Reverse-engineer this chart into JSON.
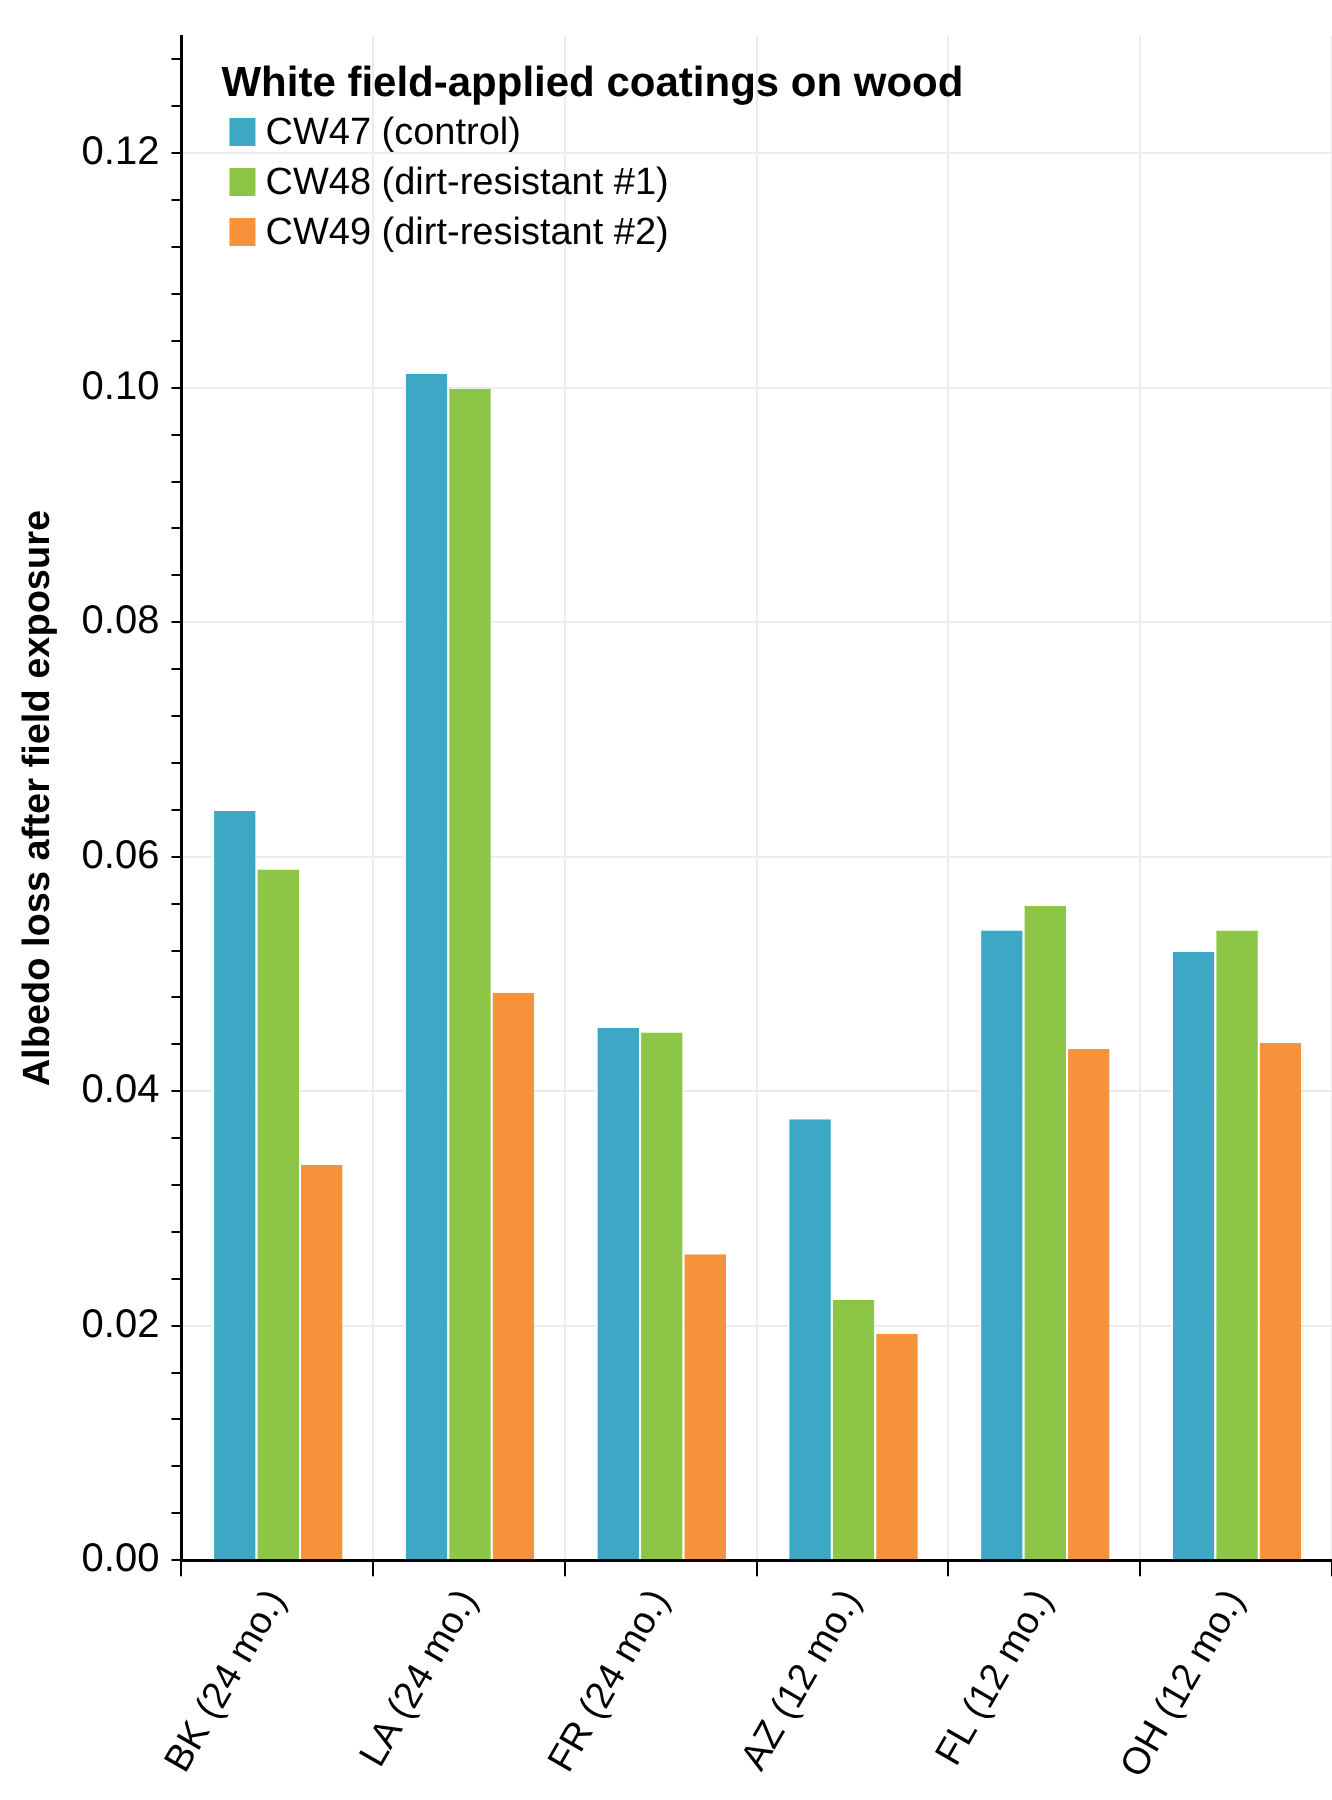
{
  "chart_data": {
    "type": "bar",
    "ylabel": "Albedo loss after field exposure",
    "legend_title": "White field-applied coatings on wood",
    "categories": [
      "BK (24 mo.)",
      "LA (24 mo.)",
      "FR (24 mo.)",
      "AZ (12 mo.)",
      "FL (12 mo.)",
      "OH (12 mo.)"
    ],
    "series": [
      {
        "name": "CW47 (control)",
        "color": "#3da8c6",
        "values": [
          0.0639,
          0.1012,
          0.0454,
          0.0376,
          0.0537,
          0.0519
        ]
      },
      {
        "name": "CW48 (dirt-resistant #1)",
        "color": "#8dc646",
        "values": [
          0.0589,
          0.0999,
          0.045,
          0.0222,
          0.0558,
          0.0537
        ]
      },
      {
        "name": "CW49 (dirt-resistant #2)",
        "color": "#f5923a",
        "values": [
          0.0337,
          0.0484,
          0.0261,
          0.0193,
          0.0436,
          0.0441
        ]
      }
    ],
    "ylim": [
      0,
      0.13
    ],
    "yticks": [
      {
        "value": 0,
        "label": "0.00"
      },
      {
        "value": 0.004,
        "label": null
      },
      {
        "value": 0.008,
        "label": null
      },
      {
        "value": 0.012,
        "label": null
      },
      {
        "value": 0.016,
        "label": null
      },
      {
        "value": 0.02,
        "label": "0.02"
      },
      {
        "value": 0.024,
        "label": null
      },
      {
        "value": 0.028,
        "label": null
      },
      {
        "value": 0.032,
        "label": null
      },
      {
        "value": 0.036,
        "label": null
      },
      {
        "value": 0.04,
        "label": "0.04"
      },
      {
        "value": 0.044,
        "label": null
      },
      {
        "value": 0.048,
        "label": null
      },
      {
        "value": 0.052,
        "label": null
      },
      {
        "value": 0.056,
        "label": null
      },
      {
        "value": 0.06,
        "label": "0.06"
      },
      {
        "value": 0.064,
        "label": null
      },
      {
        "value": 0.068,
        "label": null
      },
      {
        "value": 0.072,
        "label": null
      },
      {
        "value": 0.076,
        "label": null
      },
      {
        "value": 0.08,
        "label": "0.08"
      },
      {
        "value": 0.084,
        "label": null
      },
      {
        "value": 0.088,
        "label": null
      },
      {
        "value": 0.092,
        "label": null
      },
      {
        "value": 0.096,
        "label": null
      },
      {
        "value": 0.1,
        "label": "0.10"
      },
      {
        "value": 0.104,
        "label": null
      },
      {
        "value": 0.108,
        "label": null
      },
      {
        "value": 0.112,
        "label": null
      },
      {
        "value": 0.116,
        "label": null
      },
      {
        "value": 0.12,
        "label": "0.12"
      },
      {
        "value": 0.124,
        "label": null
      },
      {
        "value": 0.128,
        "label": null
      }
    ],
    "grid": true,
    "legend": "top left"
  }
}
